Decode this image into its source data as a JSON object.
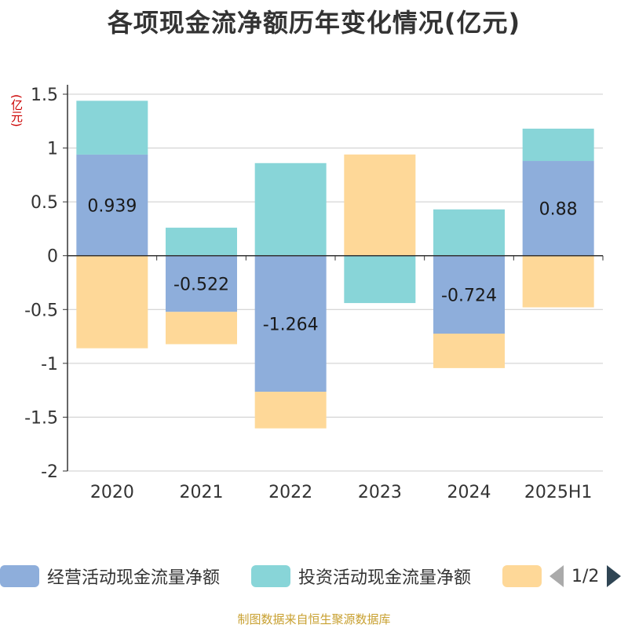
{
  "title": "各项现金流净额历年变化情况(亿元)",
  "y_unit": "(亿元)",
  "source": "制图数据来自恒生聚源数据库",
  "legend": {
    "items": [
      {
        "label": "经营活动现金流量净额",
        "color": "#8eaedb"
      },
      {
        "label": "投资活动现金流量净额",
        "color": "#88d5d8"
      },
      {
        "label": "",
        "color": "#fed898"
      }
    ],
    "page": "1/2"
  },
  "chart_data": {
    "type": "bar",
    "stacked": true,
    "categories": [
      "2020",
      "2021",
      "2022",
      "2023",
      "2024",
      "2025H1"
    ],
    "ylim": [
      -2,
      1.5
    ],
    "yticks": [
      1.5,
      1,
      0.5,
      0,
      -0.5,
      -1,
      -1.5,
      -2
    ],
    "grid": true,
    "series": [
      {
        "name": "经营活动现金流量净额",
        "color": "#8eaedb",
        "values": [
          0.939,
          -0.522,
          -1.264,
          0.0,
          -0.724,
          0.88
        ],
        "labels": [
          "0.939",
          "-0.522",
          "-1.264",
          "",
          "-0.724",
          "0.88"
        ]
      },
      {
        "name": "投资活动现金流量净额",
        "color": "#88d5d8",
        "values": [
          0.5,
          0.26,
          0.86,
          -0.44,
          0.43,
          0.3
        ]
      },
      {
        "name": "",
        "color": "#fed898",
        "values": [
          -0.86,
          -0.3,
          -0.34,
          0.94,
          -0.32,
          -0.48
        ]
      }
    ]
  }
}
